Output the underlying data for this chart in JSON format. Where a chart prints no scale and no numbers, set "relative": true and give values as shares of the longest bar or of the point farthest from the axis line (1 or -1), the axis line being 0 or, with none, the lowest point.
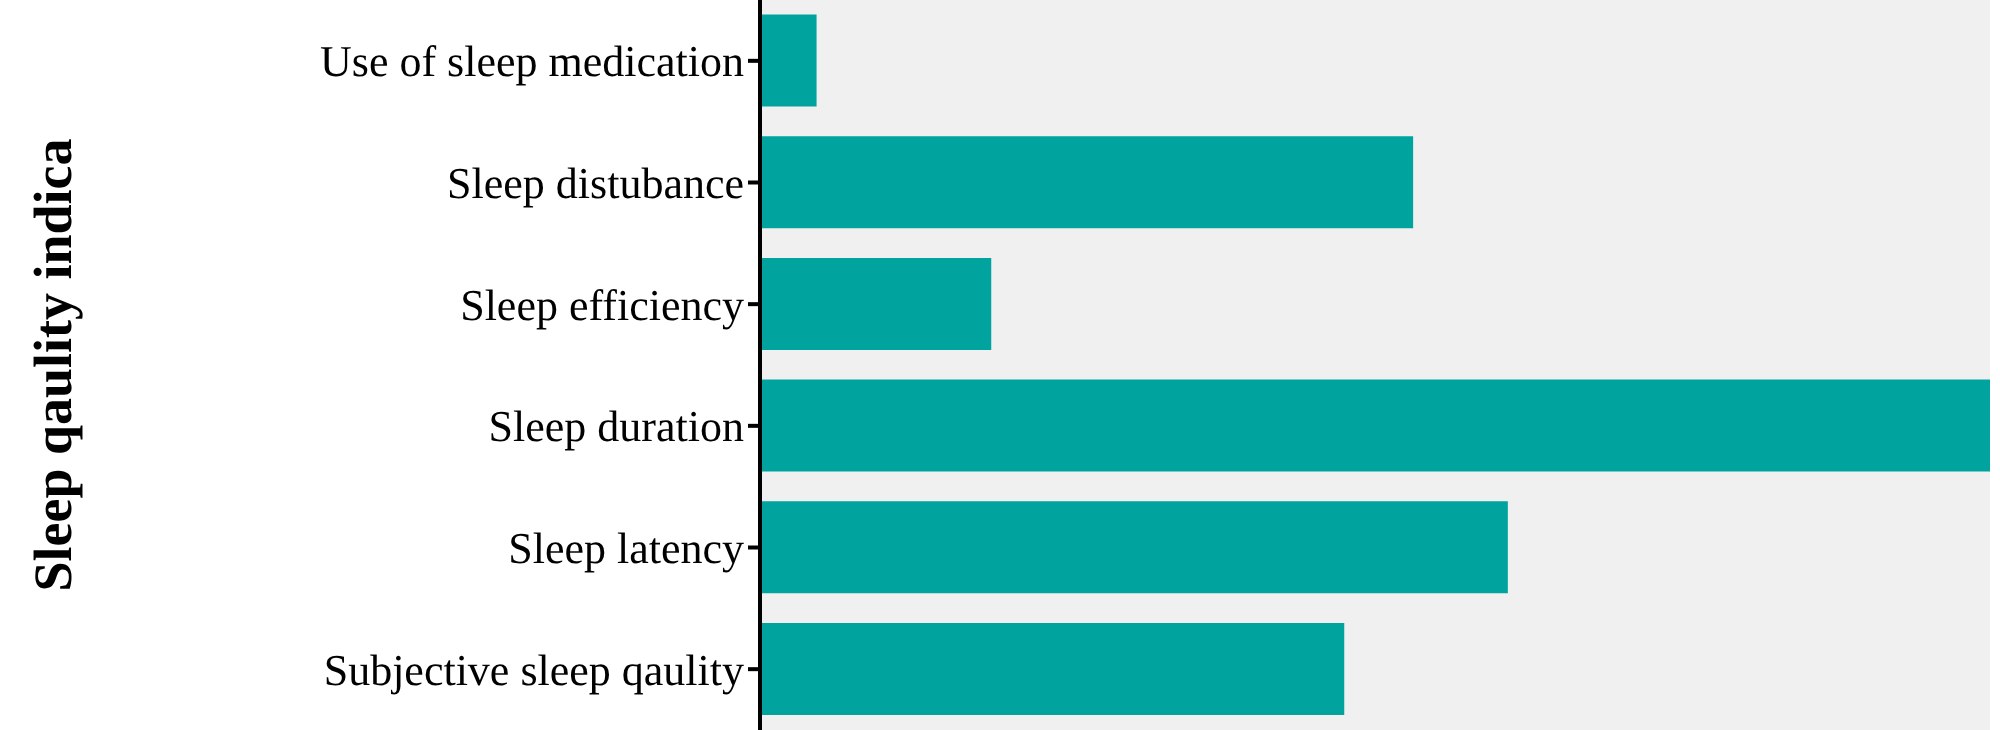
{
  "chart_data": {
    "type": "bar",
    "orientation": "horizontal",
    "relative": true,
    "ylabel": "Sleep qaulity indica",
    "categories": [
      "Use of sleep medication",
      "Sleep distubance",
      "Sleep efficiency",
      "Sleep duration",
      "Sleep latency",
      "Subjective sleep qaulity"
    ],
    "values": [
      0.046,
      0.531,
      0.188,
      1,
      0.608,
      0.475
    ],
    "color": "#00a39e"
  }
}
